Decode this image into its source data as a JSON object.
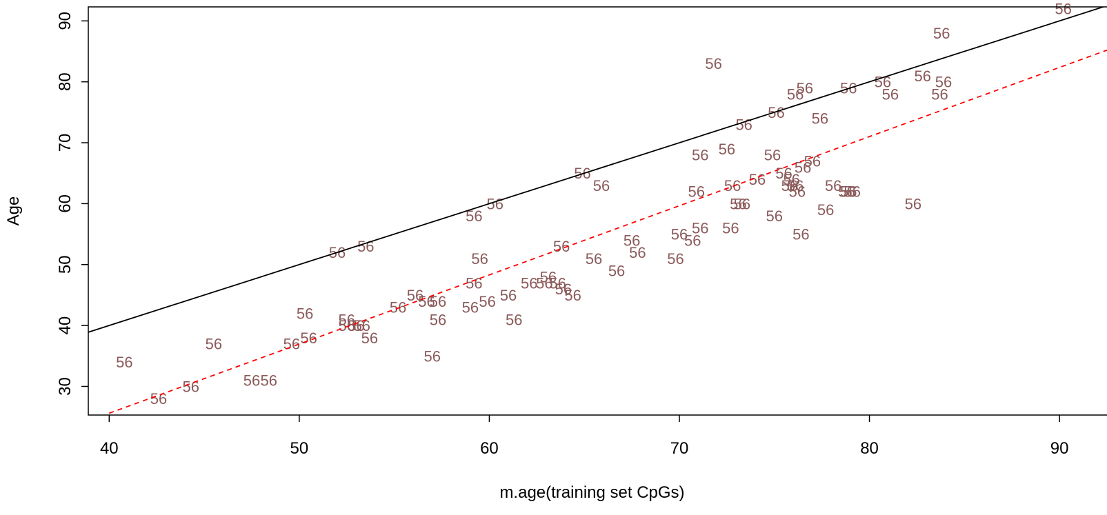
{
  "chart_data": {
    "type": "scatter",
    "xlabel": "m.age(training set CpGs)",
    "ylabel": "Age",
    "xlim": [
      38.9,
      92.5
    ],
    "ylim": [
      25.3,
      92.3
    ],
    "x_ticks": [
      40,
      50,
      60,
      70,
      80,
      90
    ],
    "y_ticks": [
      30,
      40,
      50,
      60,
      70,
      80,
      90
    ],
    "grid": false,
    "point_marker_text": "56",
    "point_color": "#8B5A5A",
    "lines": [
      {
        "kind": "identity",
        "style": "solid",
        "color": "#000000",
        "intercept": 0,
        "slope": 1
      },
      {
        "kind": "regression",
        "style": "dashed",
        "color": "#FF0000",
        "points": [
          [
            40,
            25.6
          ],
          [
            92.5,
            85.2
          ]
        ]
      }
    ],
    "points": [
      [
        40.8,
        34
      ],
      [
        42.6,
        28
      ],
      [
        44.3,
        30
      ],
      [
        45.5,
        37
      ],
      [
        47.5,
        31
      ],
      [
        48.4,
        31
      ],
      [
        49.6,
        37
      ],
      [
        50.3,
        42
      ],
      [
        50.5,
        38
      ],
      [
        52,
        52
      ],
      [
        52.5,
        41
      ],
      [
        52.5,
        40
      ],
      [
        53,
        40
      ],
      [
        53.3,
        40
      ],
      [
        53.5,
        53
      ],
      [
        53.7,
        38
      ],
      [
        55.2,
        43
      ],
      [
        56.1,
        45
      ],
      [
        56.7,
        44
      ],
      [
        57.3,
        41
      ],
      [
        57.3,
        44
      ],
      [
        57,
        35
      ],
      [
        59,
        43
      ],
      [
        59.2,
        47
      ],
      [
        59.2,
        58
      ],
      [
        59.5,
        51
      ],
      [
        59.9,
        44
      ],
      [
        60.3,
        60
      ],
      [
        61,
        45
      ],
      [
        61.3,
        41
      ],
      [
        62.1,
        47
      ],
      [
        62.9,
        47
      ],
      [
        63.1,
        48
      ],
      [
        63.6,
        47
      ],
      [
        63.8,
        53
      ],
      [
        63.9,
        46
      ],
      [
        64.4,
        45
      ],
      [
        64.9,
        65
      ],
      [
        65.5,
        51
      ],
      [
        65.9,
        63
      ],
      [
        66.7,
        49
      ],
      [
        67.5,
        54
      ],
      [
        67.8,
        52
      ],
      [
        69.8,
        51
      ],
      [
        70,
        55
      ],
      [
        70.7,
        54
      ],
      [
        70.9,
        62
      ],
      [
        71.1,
        56
      ],
      [
        71.1,
        68
      ],
      [
        71.8,
        83
      ],
      [
        72.5,
        69
      ],
      [
        72.7,
        56
      ],
      [
        72.8,
        63
      ],
      [
        73.1,
        60
      ],
      [
        73.3,
        60
      ],
      [
        73.4,
        73
      ],
      [
        74.1,
        64
      ],
      [
        74.9,
        68
      ],
      [
        75,
        58
      ],
      [
        75.1,
        75
      ],
      [
        75.5,
        65
      ],
      [
        75.8,
        63
      ],
      [
        75.9,
        64
      ],
      [
        76.1,
        63
      ],
      [
        76.1,
        78
      ],
      [
        76.2,
        62
      ],
      [
        76.4,
        55
      ],
      [
        76.5,
        66
      ],
      [
        76.6,
        79
      ],
      [
        77,
        67
      ],
      [
        77.4,
        74
      ],
      [
        77.7,
        59
      ],
      [
        78.1,
        63
      ],
      [
        78.8,
        62
      ],
      [
        78.9,
        62
      ],
      [
        79.1,
        62
      ],
      [
        78.9,
        79
      ],
      [
        80.7,
        80
      ],
      [
        81.1,
        78
      ],
      [
        82.3,
        60
      ],
      [
        82.8,
        81
      ],
      [
        83.7,
        78
      ],
      [
        83.8,
        88
      ],
      [
        83.9,
        80
      ],
      [
        90.2,
        92
      ]
    ]
  }
}
